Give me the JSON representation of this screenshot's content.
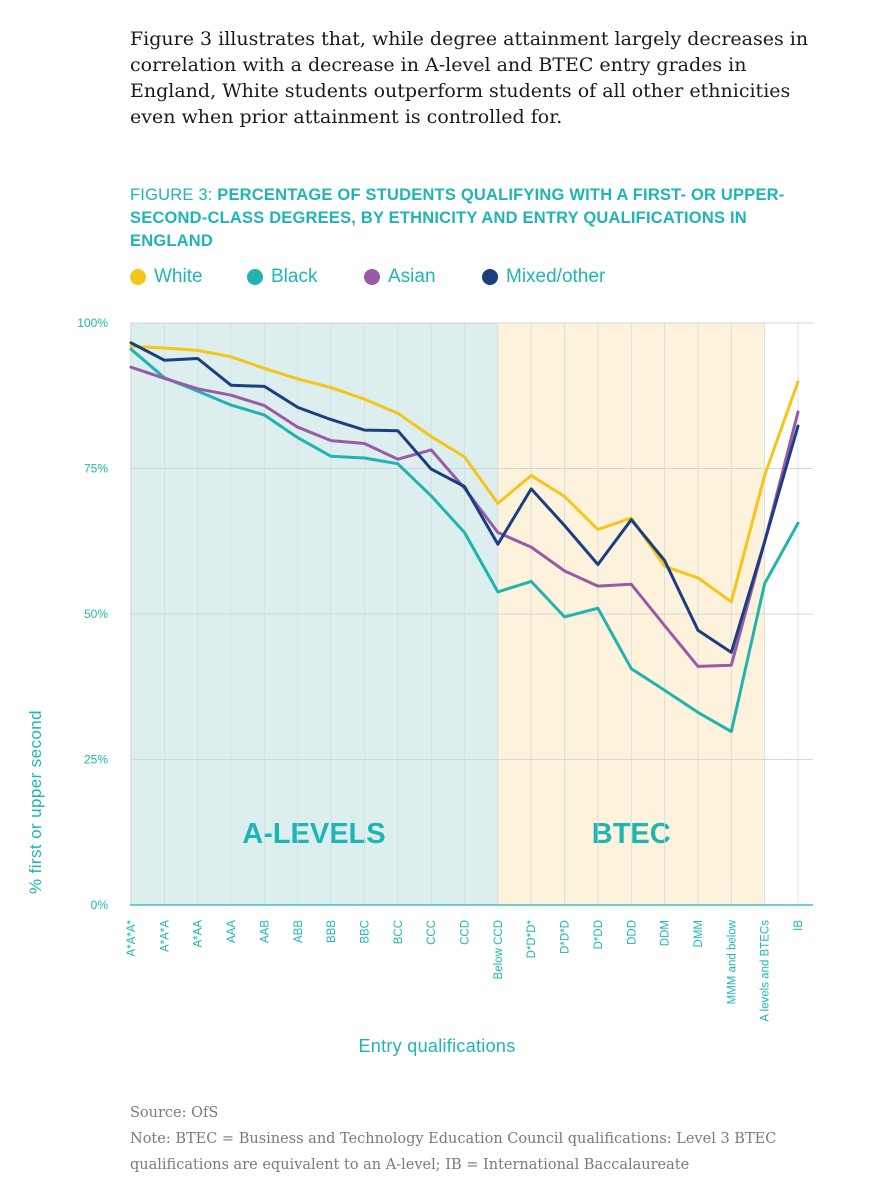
{
  "intro": "Figure 3 illustrates that, while degree attainment largely decreases in correlation with a decrease in A-level and BTEC entry grades in England, White students outperform students of all other ethnicities even when prior attainment is controlled for.",
  "figure": {
    "label": "FIGURE 3: ",
    "title": "PERCENTAGE OF STUDENTS QUALIFYING WITH A FIRST- OR UPPER-SECOND-CLASS DEGREES, BY ETHNICITY AND ENTRY QUALIFICATIONS IN ENGLAND"
  },
  "source": "Source: OfS",
  "note": "Note: BTEC = Business and Technology Education Council qualifications: Level 3 BTEC qualifications are equivalent to an A-level; IB = International Baccalaureate",
  "chart_data": {
    "type": "line",
    "title": "PERCENTAGE OF STUDENTS QUALIFYING WITH A FIRST- OR UPPER-SECOND-CLASS DEGREES, BY ETHNICITY AND ENTRY QUALIFICATIONS IN ENGLAND",
    "xlabel": "Entry qualifications",
    "ylabel": "% first or upper second",
    "ylim": [
      0,
      100
    ],
    "yticks": [
      "0%",
      "25%",
      "50%",
      "75%",
      "100%"
    ],
    "grid": true,
    "legend_position": "top",
    "categories": [
      "A*A*A*",
      "A*A*A",
      "A*AA",
      "AAA",
      "AAB",
      "ABB",
      "BBB",
      "BBC",
      "BCC",
      "CCC",
      "CCD",
      "Below CCD",
      "D*D*D*",
      "D*D*D",
      "D*DD",
      "DDD",
      "DDM",
      "DMM",
      "MMM and below",
      "A levels and BTECs",
      "IB"
    ],
    "regions": [
      {
        "label": "A-LEVELS",
        "from": "A*A*A*",
        "to": "Below CCD",
        "color": "#ddeeef"
      },
      {
        "label": "BTEC",
        "from": "Below CCD",
        "to": "A levels and BTECs",
        "color": "#fdf3dd"
      }
    ],
    "series": [
      {
        "name": "White",
        "color": "#f5c518",
        "values": [
          96,
          95.7,
          95.3,
          94.2,
          92.2,
          90.4,
          88.9,
          86.9,
          84.5,
          80.5,
          77,
          69,
          73.8,
          70.2,
          64.5,
          66.5,
          58.2,
          56.2,
          52.1,
          73.8,
          89.9
        ]
      },
      {
        "name": "Black",
        "color": "#20b3b0",
        "values": [
          95.5,
          90.6,
          88.3,
          85.9,
          84.2,
          80.3,
          77.1,
          76.8,
          75.8,
          70.3,
          64,
          53.8,
          55.6,
          49.5,
          51,
          40.6,
          36.9,
          33.1,
          29.8,
          55.2,
          65.6
        ]
      },
      {
        "name": "Asian",
        "color": "#9a5aa6",
        "values": [
          92.4,
          90.5,
          88.7,
          87.6,
          85.8,
          82.1,
          79.8,
          79.3,
          76.6,
          78.2,
          71.6,
          64,
          61.5,
          57.4,
          54.8,
          55.1,
          48,
          41,
          41.2,
          62.4,
          84.7
        ]
      },
      {
        "name": "Mixed/other",
        "color": "#1a3e80",
        "values": [
          96.6,
          93.6,
          93.9,
          89.3,
          89.1,
          85.5,
          83.4,
          81.6,
          81.5,
          74.9,
          71.9,
          62,
          71.5,
          65.2,
          58.5,
          66.2,
          59.2,
          47.2,
          43.4,
          62.4,
          82.3
        ]
      }
    ]
  }
}
